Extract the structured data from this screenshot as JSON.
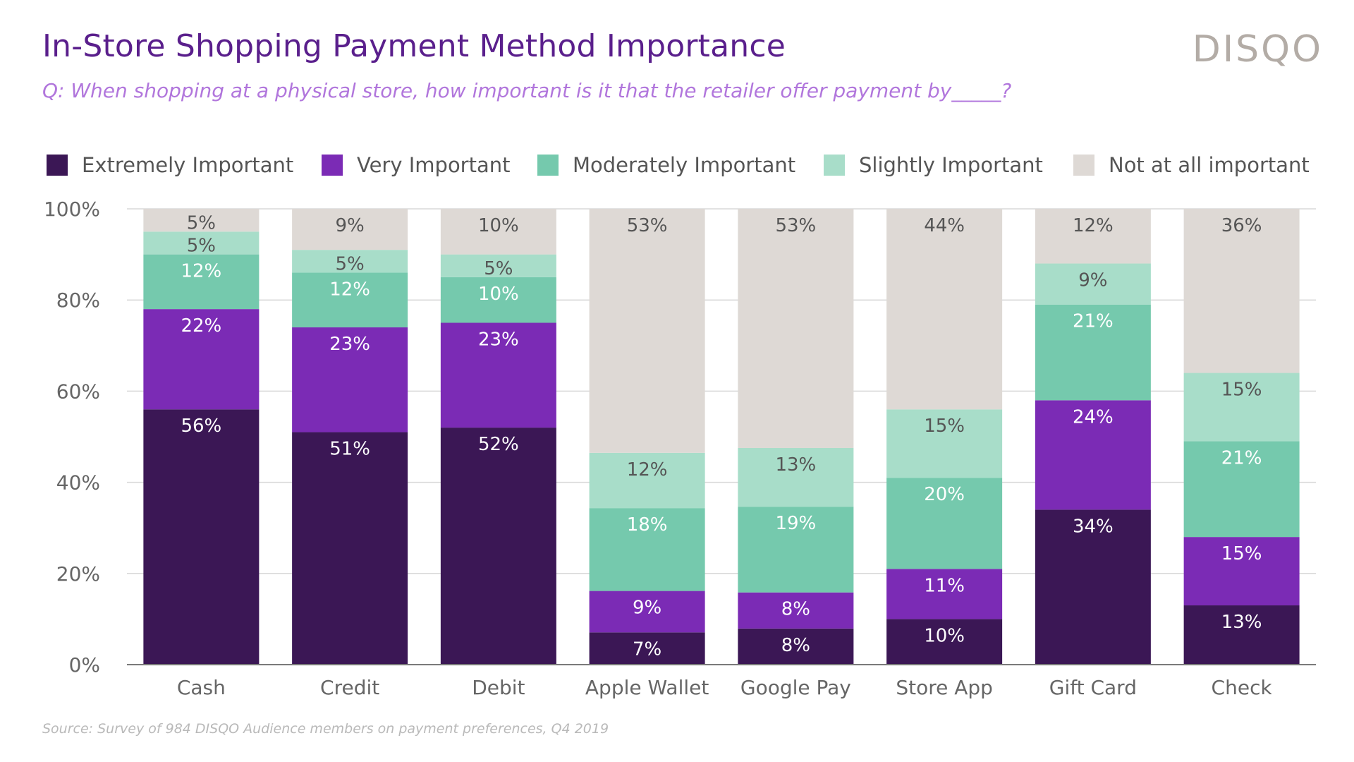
{
  "header": {
    "title": "In-Store Shopping Payment Method Importance",
    "subtitle": "Q: When shopping at a physical store, how important is it that the retailer offer payment by_____?",
    "logo": "DISQO"
  },
  "footer": {
    "source": "Source: Survey of 984 DISQO Audience members on payment preferences, Q4 2019"
  },
  "chart_data": {
    "type": "bar",
    "stacked": true,
    "categories": [
      "Cash",
      "Credit",
      "Debit",
      "Apple Wallet",
      "Google Pay",
      "Store App",
      "Gift Card",
      "Check"
    ],
    "series": [
      {
        "name": "Extremely Important",
        "color": "#3b1755",
        "label_color": "#ffffff",
        "values": [
          56,
          51,
          52,
          7,
          8,
          10,
          34,
          13
        ]
      },
      {
        "name": "Very Important",
        "color": "#7b2bb5",
        "label_color": "#ffffff",
        "values": [
          22,
          23,
          23,
          9,
          8,
          11,
          24,
          15
        ]
      },
      {
        "name": "Moderately Important",
        "color": "#75c9ad",
        "label_color": "#ffffff",
        "values": [
          12,
          12,
          10,
          18,
          19,
          20,
          21,
          21
        ]
      },
      {
        "name": "Slightly Important",
        "color": "#a8ddc9",
        "label_color": "#555555",
        "values": [
          5,
          5,
          5,
          12,
          13,
          15,
          9,
          15
        ]
      },
      {
        "name": "Not at all important",
        "color": "#ded9d5",
        "label_color": "#555555",
        "values": [
          5,
          9,
          10,
          53,
          53,
          44,
          12,
          36
        ]
      }
    ],
    "y_ticks": [
      "0%",
      "20%",
      "40%",
      "60%",
      "80%",
      "100%"
    ],
    "ylim": [
      0,
      100
    ],
    "grid": true,
    "legend_position": "top"
  }
}
